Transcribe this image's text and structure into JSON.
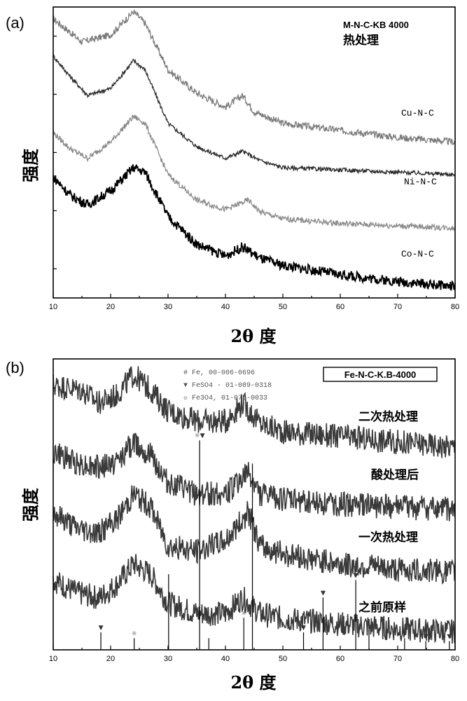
{
  "chart_data": [
    {
      "panel": "(a)",
      "type": "line",
      "xlabel": "2θ 度",
      "ylabel": "强度",
      "xlim": [
        10,
        80
      ],
      "xticks": [
        10,
        20,
        30,
        40,
        50,
        60,
        70,
        80
      ],
      "legend_title": "M-N-C-KB 4000",
      "legend_subtitle": "热处理",
      "series": [
        {
          "name": "",
          "color": "#7a7a7a",
          "noise": 1.0,
          "points": [
            [
              10,
              1.0
            ],
            [
              15,
              0.9
            ],
            [
              20,
              0.93
            ],
            [
              24,
              1.03
            ],
            [
              26,
              0.98
            ],
            [
              30,
              0.78
            ],
            [
              35,
              0.68
            ],
            [
              40,
              0.62
            ],
            [
              43,
              0.67
            ],
            [
              45,
              0.6
            ],
            [
              50,
              0.55
            ],
            [
              60,
              0.52
            ],
            [
              70,
              0.49
            ],
            [
              80,
              0.47
            ]
          ]
        },
        {
          "name": "Cu-N-C",
          "color": "#2a2a2a",
          "noise": 0.6,
          "points": [
            [
              10,
              0.84
            ],
            [
              13,
              0.75
            ],
            [
              16,
              0.67
            ],
            [
              20,
              0.7
            ],
            [
              24,
              0.82
            ],
            [
              26,
              0.78
            ],
            [
              30,
              0.55
            ],
            [
              35,
              0.45
            ],
            [
              40,
              0.4
            ],
            [
              43,
              0.43
            ],
            [
              46,
              0.39
            ],
            [
              50,
              0.36
            ],
            [
              60,
              0.35
            ],
            [
              70,
              0.34
            ],
            [
              80,
              0.33
            ]
          ]
        },
        {
          "name": "Ni-N-C",
          "color": "#8a8a8a",
          "noise": 0.8,
          "points": [
            [
              10,
              0.51
            ],
            [
              13,
              0.44
            ],
            [
              16,
              0.4
            ],
            [
              20,
              0.47
            ],
            [
              24,
              0.58
            ],
            [
              26,
              0.55
            ],
            [
              30,
              0.33
            ],
            [
              35,
              0.22
            ],
            [
              40,
              0.18
            ],
            [
              44,
              0.22
            ],
            [
              46,
              0.17
            ],
            [
              50,
              0.14
            ],
            [
              60,
              0.12
            ],
            [
              70,
              0.11
            ],
            [
              80,
              0.1
            ]
          ]
        },
        {
          "name": "Co-N-C",
          "color": "#000000",
          "noise": 1.4,
          "points": [
            [
              10,
              0.32
            ],
            [
              13,
              0.24
            ],
            [
              16,
              0.2
            ],
            [
              20,
              0.26
            ],
            [
              24,
              0.36
            ],
            [
              26,
              0.34
            ],
            [
              30,
              0.15
            ],
            [
              35,
              0.03
            ],
            [
              40,
              -0.02
            ],
            [
              43,
              0.02
            ],
            [
              46,
              -0.03
            ],
            [
              50,
              -0.06
            ],
            [
              60,
              -0.1
            ],
            [
              70,
              -0.13
            ],
            [
              80,
              -0.15
            ]
          ]
        }
      ]
    },
    {
      "panel": "(b)",
      "type": "line",
      "xlabel": "2θ 度",
      "ylabel": "强度",
      "xlim": [
        10,
        80
      ],
      "xticks": [
        10,
        20,
        30,
        40,
        50,
        60,
        70,
        80
      ],
      "legend_title": "Fe-N-C-K.B-4000",
      "ref_legend": [
        "# Fe, 00-006-0696",
        "▼ FeSO4 - 01-089-0318",
        "☼ Fe3O4, 01-075-0033"
      ],
      "series": [
        {
          "name": "二次热处理",
          "color": "#3a3a3a",
          "noise": 3.2,
          "points": [
            [
              10,
              1.02
            ],
            [
              15,
              1.0
            ],
            [
              18,
              0.95
            ],
            [
              21,
              0.98
            ],
            [
              24,
              1.06
            ],
            [
              27,
              1.0
            ],
            [
              30,
              0.92
            ],
            [
              35,
              0.88
            ],
            [
              40,
              0.88
            ],
            [
              43,
              0.95
            ],
            [
              46,
              0.87
            ],
            [
              50,
              0.84
            ],
            [
              60,
              0.82
            ],
            [
              70,
              0.8
            ],
            [
              80,
              0.78
            ]
          ]
        },
        {
          "name": "酸处理后",
          "color": "#3a3a3a",
          "noise": 3.2,
          "points": [
            [
              10,
              0.76
            ],
            [
              14,
              0.72
            ],
            [
              18,
              0.7
            ],
            [
              21,
              0.72
            ],
            [
              24,
              0.8
            ],
            [
              27,
              0.75
            ],
            [
              30,
              0.64
            ],
            [
              35,
              0.6
            ],
            [
              40,
              0.6
            ],
            [
              44,
              0.68
            ],
            [
              46,
              0.6
            ],
            [
              50,
              0.58
            ],
            [
              60,
              0.56
            ],
            [
              70,
              0.55
            ],
            [
              80,
              0.54
            ]
          ]
        },
        {
          "name": "一次热处理",
          "color": "#3a3a3a",
          "noise": 3.2,
          "points": [
            [
              10,
              0.53
            ],
            [
              14,
              0.47
            ],
            [
              18,
              0.45
            ],
            [
              21,
              0.5
            ],
            [
              24,
              0.6
            ],
            [
              27,
              0.55
            ],
            [
              30,
              0.4
            ],
            [
              35,
              0.38
            ],
            [
              40,
              0.42
            ],
            [
              44,
              0.53
            ],
            [
              46,
              0.4
            ],
            [
              50,
              0.37
            ],
            [
              60,
              0.33
            ],
            [
              70,
              0.31
            ],
            [
              80,
              0.3
            ]
          ]
        },
        {
          "name": "之前原样",
          "color": "#3a3a3a",
          "noise": 3.2,
          "points": [
            [
              10,
              0.27
            ],
            [
              14,
              0.22
            ],
            [
              18,
              0.2
            ],
            [
              21,
              0.25
            ],
            [
              24,
              0.33
            ],
            [
              27,
              0.29
            ],
            [
              30,
              0.18
            ],
            [
              35,
              0.14
            ],
            [
              40,
              0.14
            ],
            [
              43,
              0.2
            ],
            [
              46,
              0.14
            ],
            [
              50,
              0.12
            ],
            [
              60,
              0.1
            ],
            [
              70,
              0.08
            ],
            [
              80,
              0.07
            ]
          ]
        }
      ],
      "reference_lines": [
        {
          "x": 18.3,
          "h": 0.06,
          "marker": "▼"
        },
        {
          "x": 24.1,
          "h": 0.04,
          "marker": "☼"
        },
        {
          "x": 30.1,
          "h": 0.26,
          "marker": ""
        },
        {
          "x": 35.5,
          "h": 0.72,
          "marker": "☼▼"
        },
        {
          "x": 37.1,
          "h": 0.04,
          "marker": ""
        },
        {
          "x": 43.2,
          "h": 0.11,
          "marker": "☼"
        },
        {
          "x": 44.7,
          "h": 0.64,
          "marker": ""
        },
        {
          "x": 53.6,
          "h": 0.06,
          "marker": "▼"
        },
        {
          "x": 57.0,
          "h": 0.18,
          "marker": "▼"
        },
        {
          "x": 62.7,
          "h": 0.24,
          "marker": "▼"
        },
        {
          "x": 65.0,
          "h": 0.08,
          "marker": ""
        },
        {
          "x": 71.2,
          "h": 0.04,
          "marker": "▼"
        },
        {
          "x": 74.9,
          "h": 0.03,
          "marker": "▼"
        },
        {
          "x": 79.0,
          "h": 0.03,
          "marker": "▼"
        }
      ]
    }
  ]
}
